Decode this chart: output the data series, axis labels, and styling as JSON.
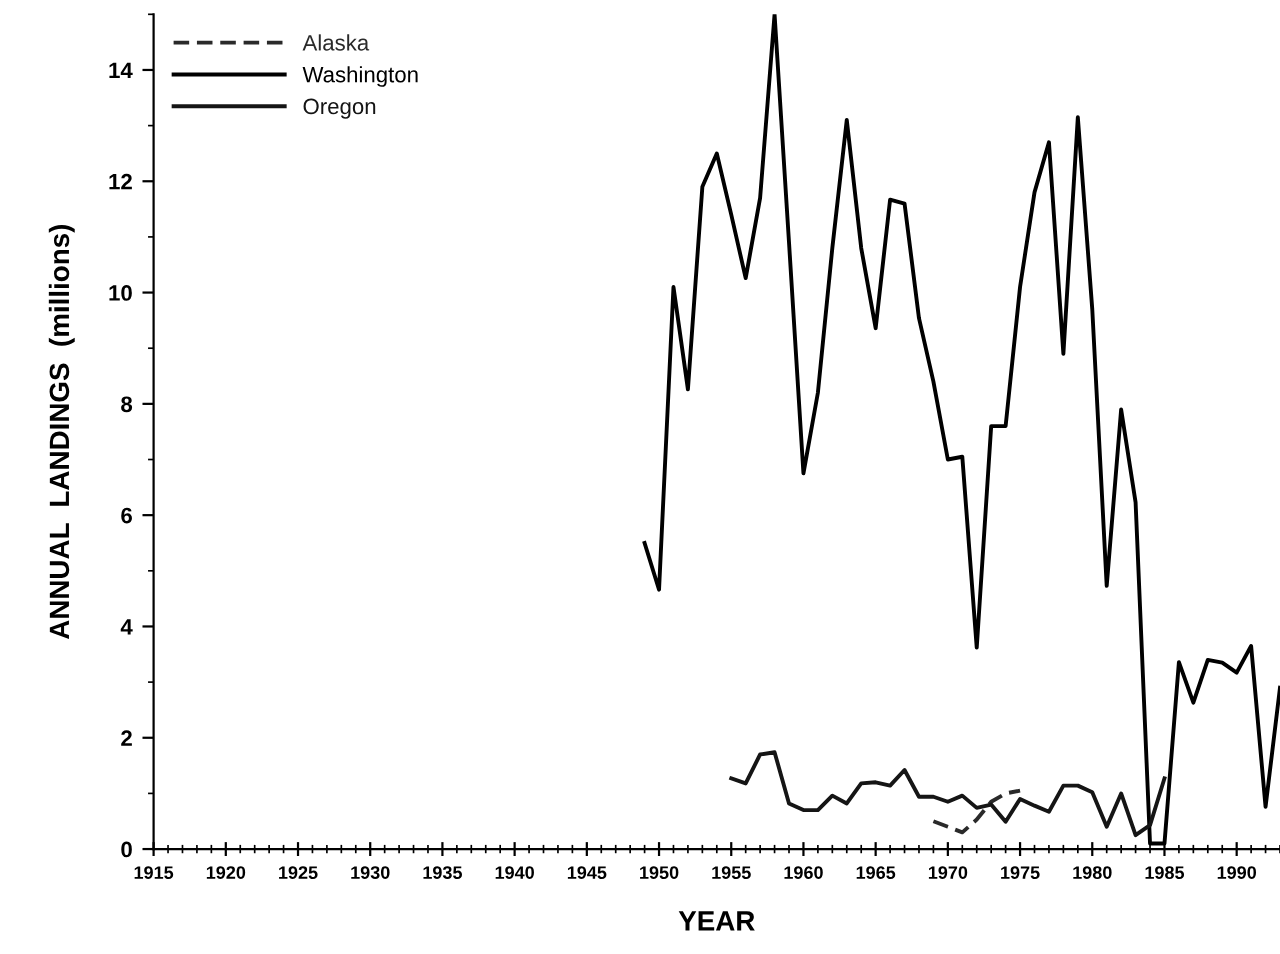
{
  "chart_data": {
    "type": "line",
    "xlabel": "YEAR",
    "ylabel": "ANNUAL  LANDINGS  (millions)",
    "xlim": [
      1915,
      1993
    ],
    "ylim": [
      0,
      15
    ],
    "xticks": [
      1915,
      1920,
      1925,
      1930,
      1935,
      1940,
      1945,
      1950,
      1955,
      1960,
      1965,
      1970,
      1975,
      1980,
      1985,
      1990
    ],
    "yticks": [
      0,
      2,
      4,
      6,
      8,
      10,
      12,
      14
    ],
    "grid": false,
    "legend": "top left",
    "marker": "none",
    "series": [
      {
        "name": "Alaska",
        "color": "#2a2a2a",
        "line_style": "dashed",
        "x": [
          1969,
          1970,
          1971,
          1972,
          1973,
          1974,
          1975
        ],
        "values": [
          0.5,
          0.4,
          0.3,
          0.53,
          0.85,
          1.0,
          1.05
        ]
      },
      {
        "name": "Washington",
        "color": "#000000",
        "line_style": "solid",
        "x": [
          1949,
          1950,
          1951,
          1952,
          1953,
          1954,
          1955,
          1956,
          1957,
          1958,
          1959,
          1960,
          1961,
          1962,
          1963,
          1964,
          1965,
          1966,
          1967,
          1968,
          1969,
          1970,
          1971,
          1972,
          1973,
          1974,
          1975,
          1976,
          1977,
          1978,
          1979,
          1980,
          1981,
          1982,
          1983,
          1984,
          1985,
          1986,
          1987,
          1988,
          1989,
          1990,
          1991,
          1992,
          1993
        ],
        "values": [
          5.5,
          4.66,
          10.1,
          8.26,
          11.9,
          12.5,
          11.4,
          10.26,
          11.7,
          15.0,
          10.9,
          6.75,
          8.2,
          10.8,
          13.1,
          10.8,
          9.36,
          11.67,
          11.6,
          9.54,
          8.4,
          7.0,
          7.05,
          3.62,
          7.6,
          7.6,
          10.1,
          11.8,
          12.7,
          8.9,
          13.15,
          9.7,
          4.73,
          7.9,
          6.23,
          0.1,
          0.1,
          3.36,
          2.63,
          3.4,
          3.35,
          3.17,
          3.65,
          0.76,
          2.9
        ]
      },
      {
        "name": "Oregon",
        "color": "#151515",
        "line_style": "solid",
        "x": [
          1955,
          1956,
          1957,
          1958,
          1959,
          1960,
          1961,
          1962,
          1963,
          1964,
          1965,
          1966,
          1967,
          1968,
          1969,
          1970,
          1971,
          1972,
          1973,
          1974,
          1975,
          1976,
          1977,
          1978,
          1979,
          1980,
          1981,
          1982,
          1983,
          1984,
          1985
        ],
        "values": [
          1.27,
          1.18,
          1.7,
          1.74,
          0.82,
          0.7,
          0.7,
          0.96,
          0.82,
          1.18,
          1.2,
          1.14,
          1.42,
          0.94,
          0.94,
          0.85,
          0.96,
          0.74,
          0.8,
          0.49,
          0.9,
          0.78,
          0.67,
          1.14,
          1.14,
          1.02,
          0.4,
          1.0,
          0.25,
          0.43,
          1.27
        ]
      }
    ]
  }
}
